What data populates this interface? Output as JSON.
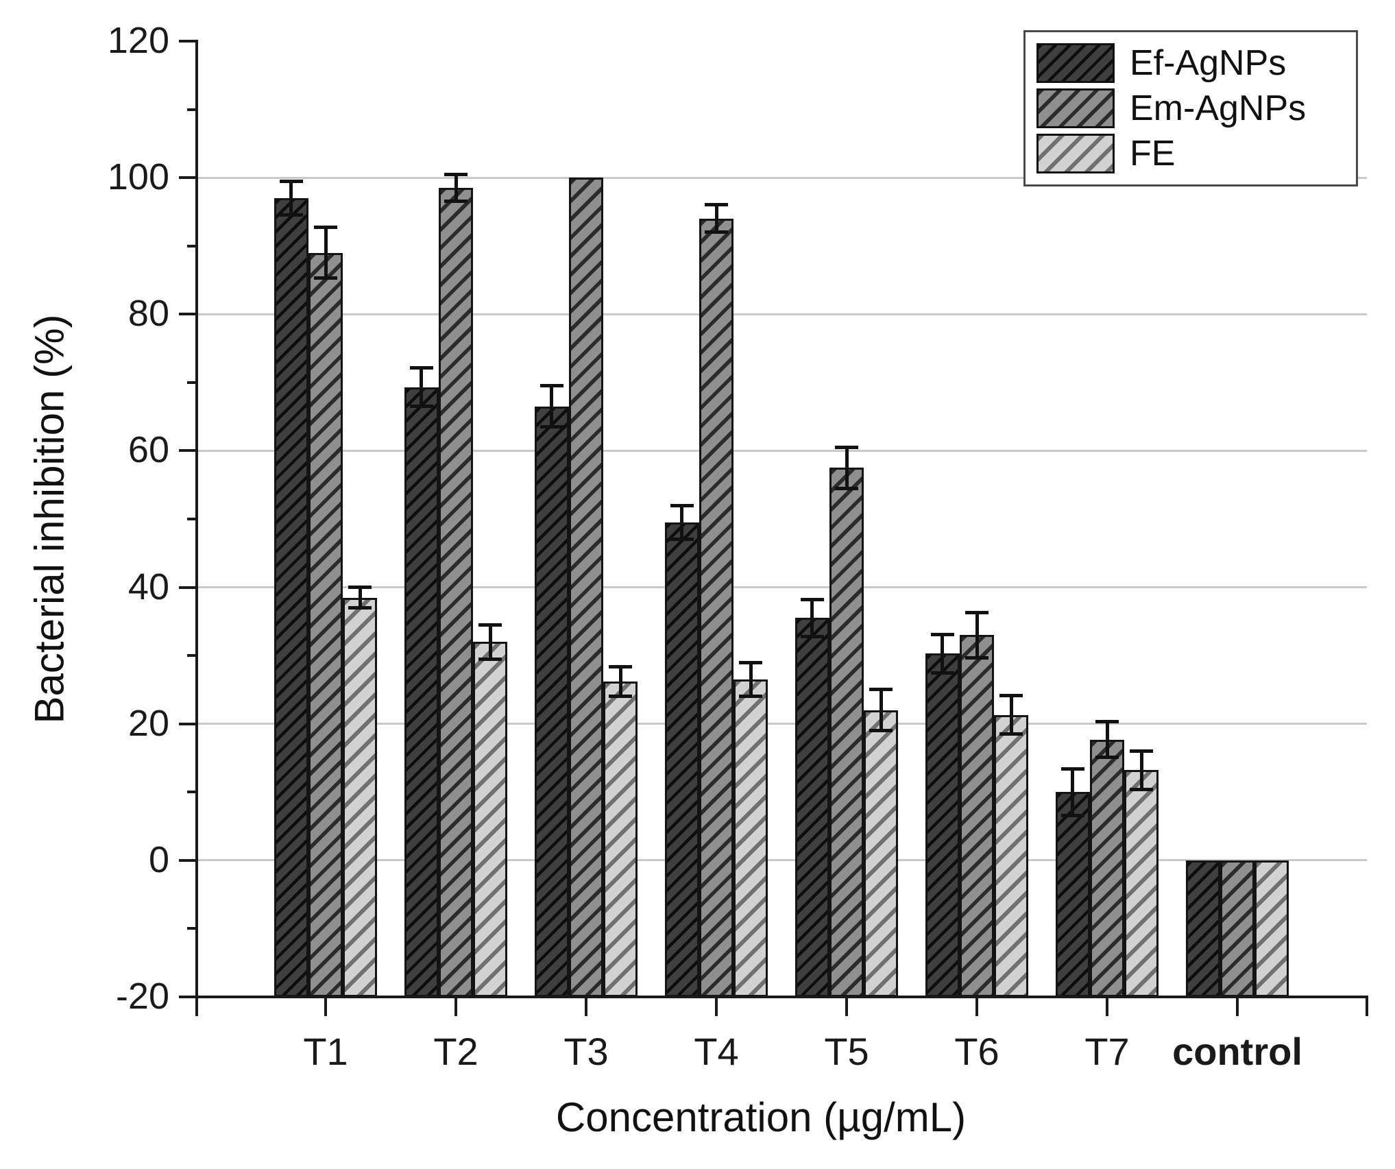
{
  "chart_data": {
    "type": "bar",
    "title": "",
    "xlabel": "Concentration (µg/mL)",
    "ylabel": "Bacterial inhibition (%)",
    "categories": [
      "T1",
      "T2",
      "T3",
      "T4",
      "T5",
      "T6",
      "T7",
      "control"
    ],
    "bold_categories": [
      "control"
    ],
    "series": [
      {
        "name": "Ef-AgNPs",
        "fill_color": "#3f3f3f",
        "hatch_color": "#0d0d0d",
        "values": [
          97.0,
          69.3,
          66.5,
          49.5,
          35.5,
          30.3,
          10.0,
          0
        ],
        "errors": [
          2.5,
          2.8,
          3.0,
          2.5,
          2.7,
          2.8,
          3.4,
          0
        ]
      },
      {
        "name": "Em-AgNPs",
        "fill_color": "#8f8f8f",
        "hatch_color": "#2b2b2b",
        "values": [
          89.0,
          98.5,
          100.0,
          94.0,
          57.5,
          33.0,
          17.7,
          0
        ],
        "errors": [
          3.7,
          2.0,
          0,
          2.0,
          3.0,
          3.3,
          2.6,
          0
        ]
      },
      {
        "name": "FE",
        "fill_color": "#d2d2d2",
        "hatch_color": "#707070",
        "values": [
          38.5,
          32.0,
          26.2,
          26.5,
          22.0,
          21.3,
          13.2,
          0
        ],
        "errors": [
          1.5,
          2.5,
          2.2,
          2.5,
          3.0,
          2.8,
          2.8,
          0
        ]
      }
    ],
    "ylim": [
      -20,
      120
    ],
    "yticks": [
      -20,
      0,
      20,
      40,
      60,
      80,
      100,
      120
    ],
    "y_minor_ticks": [
      -10,
      10,
      30,
      50,
      70,
      90,
      110
    ],
    "gridline_values": [
      0,
      20,
      40,
      60,
      80,
      100
    ],
    "grid": true,
    "legend_position": "top-right",
    "gridline_color": "#c9c9c9",
    "axis_color": "#1a1a1a"
  }
}
